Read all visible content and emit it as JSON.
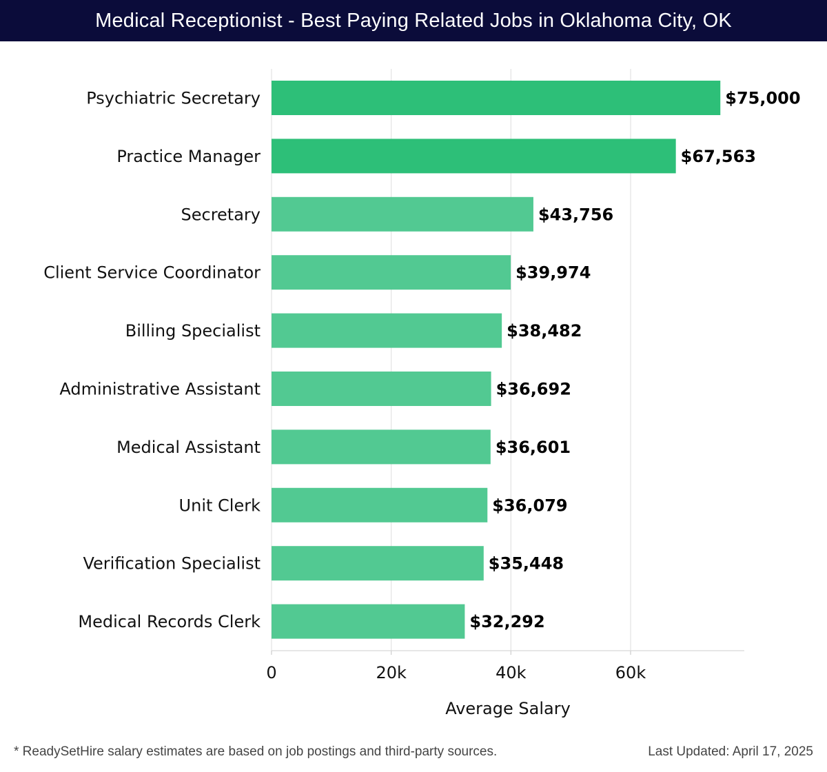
{
  "header": {
    "title": "Medical Receptionist - Best Paying Related Jobs in Oklahoma City, OK"
  },
  "colors": {
    "header_bg": "#0b0c3a",
    "bar_top": "#2dbf78",
    "bar": "#52c992",
    "grid": "#e2e2e2",
    "text": "#111111"
  },
  "chart_data": {
    "type": "bar",
    "orientation": "horizontal",
    "title": "Medical Receptionist - Best Paying Related Jobs in Oklahoma City, OK",
    "xlabel": "Average Salary",
    "ylabel": "",
    "xlim": [
      0,
      79000
    ],
    "xticks": [
      0,
      20000,
      40000,
      60000
    ],
    "xtick_labels": [
      "0",
      "20k",
      "40k",
      "60k"
    ],
    "grid": true,
    "highlight_count": 2,
    "categories": [
      "Psychiatric Secretary",
      "Practice Manager",
      "Secretary",
      "Client Service Coordinator",
      "Billing Specialist",
      "Administrative Assistant",
      "Medical Assistant",
      "Unit Clerk",
      "Verification Specialist",
      "Medical Records Clerk"
    ],
    "values": [
      75000,
      67563,
      43756,
      39974,
      38482,
      36692,
      36601,
      36079,
      35448,
      32292
    ],
    "value_labels": [
      "$75,000",
      "$67,563",
      "$43,756",
      "$39,974",
      "$38,482",
      "$36,692",
      "$36,601",
      "$36,079",
      "$35,448",
      "$32,292"
    ]
  },
  "footer": {
    "note": "* ReadySetHire salary estimates are based on job postings and third-party sources.",
    "updated": "Last Updated: April 17, 2025"
  }
}
